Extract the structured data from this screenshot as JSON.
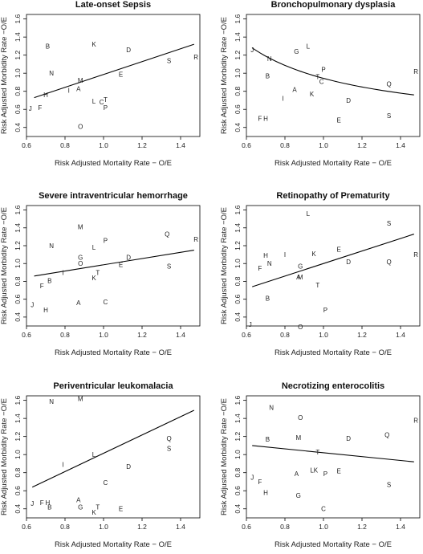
{
  "chart_data": [
    {
      "type": "scatter",
      "title": "Late-onset Sepsis",
      "xlabel": "Risk Adjusted Mortality Rate − O/E",
      "ylabel": "Risk Adjusted Morbidity Rate −O/E",
      "xlim": [
        0.6,
        1.5
      ],
      "ylim": [
        0.3,
        1.65
      ],
      "xticks": [
        "0.6",
        "0.8",
        "1.0",
        "1.2",
        "1.4"
      ],
      "yticks": [
        "0.4",
        "0.6",
        "0.8",
        "1.0",
        "1.2",
        "1.4",
        "1.6"
      ],
      "points": [
        {
          "label": "B",
          "x": 0.71,
          "y": 1.3
        },
        {
          "label": "K",
          "x": 0.95,
          "y": 1.32
        },
        {
          "label": "D",
          "x": 1.13,
          "y": 1.26
        },
        {
          "label": "S",
          "x": 1.34,
          "y": 1.14
        },
        {
          "label": "R",
          "x": 1.48,
          "y": 1.18
        },
        {
          "label": "N",
          "x": 0.73,
          "y": 1.0
        },
        {
          "label": "E",
          "x": 1.09,
          "y": 0.99
        },
        {
          "label": "M",
          "x": 0.88,
          "y": 0.92
        },
        {
          "label": "A",
          "x": 0.87,
          "y": 0.83
        },
        {
          "label": "I",
          "x": 0.82,
          "y": 0.81
        },
        {
          "label": "H",
          "x": 0.7,
          "y": 0.76
        },
        {
          "label": "T",
          "x": 1.01,
          "y": 0.71
        },
        {
          "label": "L",
          "x": 0.95,
          "y": 0.69
        },
        {
          "label": "C",
          "x": 0.99,
          "y": 0.68
        },
        {
          "label": "P",
          "x": 1.01,
          "y": 0.62
        },
        {
          "label": "F",
          "x": 0.67,
          "y": 0.62
        },
        {
          "label": "J",
          "x": 0.62,
          "y": 0.61
        },
        {
          "label": "O",
          "x": 0.88,
          "y": 0.41
        }
      ],
      "trend": {
        "shape": "linear",
        "from": [
          0.64,
          0.73
        ],
        "to": [
          1.47,
          1.32
        ]
      }
    },
    {
      "type": "scatter",
      "title": "Bronchopulmonary dysplasia",
      "xlabel": "Risk Adjusted Mortality Rate − O/E",
      "ylabel": "Risk Adjusted Morbidity Rate −O/E",
      "xlim": [
        0.6,
        1.5
      ],
      "ylim": [
        0.3,
        1.65
      ],
      "xticks": [
        "0.6",
        "0.8",
        "1.0",
        "1.2",
        "1.4"
      ],
      "yticks": [
        "0.4",
        "0.6",
        "0.8",
        "1.0",
        "1.2",
        "1.4",
        "1.6"
      ],
      "points": [
        {
          "label": "L",
          "x": 0.92,
          "y": 1.3
        },
        {
          "label": "J",
          "x": 0.63,
          "y": 1.26
        },
        {
          "label": "G",
          "x": 0.86,
          "y": 1.24
        },
        {
          "label": "N",
          "x": 0.72,
          "y": 1.16
        },
        {
          "label": "R",
          "x": 1.48,
          "y": 1.02
        },
        {
          "label": "P",
          "x": 1.0,
          "y": 1.04
        },
        {
          "label": "B",
          "x": 0.71,
          "y": 0.97
        },
        {
          "label": "T",
          "x": 0.97,
          "y": 0.96
        },
        {
          "label": "C",
          "x": 0.99,
          "y": 0.91
        },
        {
          "label": "Q",
          "x": 1.34,
          "y": 0.88
        },
        {
          "label": "A",
          "x": 0.85,
          "y": 0.82
        },
        {
          "label": "K",
          "x": 0.94,
          "y": 0.77
        },
        {
          "label": "I",
          "x": 0.79,
          "y": 0.72
        },
        {
          "label": "D",
          "x": 1.13,
          "y": 0.7
        },
        {
          "label": "F",
          "x": 0.67,
          "y": 0.5
        },
        {
          "label": "H",
          "x": 0.7,
          "y": 0.5
        },
        {
          "label": "E",
          "x": 1.08,
          "y": 0.48
        },
        {
          "label": "S",
          "x": 1.34,
          "y": 0.53
        }
      ],
      "trend": {
        "shape": "reciprocal",
        "from": [
          0.63,
          1.28
        ],
        "to": [
          1.47,
          0.76
        ]
      }
    },
    {
      "type": "scatter",
      "title": "Severe intraventricular hemorrhage",
      "xlabel": "Risk Adjusted Mortality Rate − O/E",
      "ylabel": "Risk Adjusted Morbidity Rate −O/E",
      "xlim": [
        0.6,
        1.5
      ],
      "ylim": [
        0.3,
        1.65
      ],
      "xticks": [
        "0.6",
        "0.8",
        "1.0",
        "1.2",
        "1.4"
      ],
      "yticks": [
        "0.4",
        "0.6",
        "0.8",
        "1.0",
        "1.2",
        "1.4",
        "1.6"
      ],
      "points": [
        {
          "label": "M",
          "x": 0.88,
          "y": 1.41
        },
        {
          "label": "Q",
          "x": 1.33,
          "y": 1.33
        },
        {
          "label": "R",
          "x": 1.48,
          "y": 1.27
        },
        {
          "label": "P",
          "x": 1.01,
          "y": 1.26
        },
        {
          "label": "N",
          "x": 0.73,
          "y": 1.2
        },
        {
          "label": "L",
          "x": 0.95,
          "y": 1.18
        },
        {
          "label": "G",
          "x": 0.88,
          "y": 1.07
        },
        {
          "label": "D",
          "x": 1.13,
          "y": 1.07
        },
        {
          "label": "O",
          "x": 0.88,
          "y": 1.0
        },
        {
          "label": "E",
          "x": 1.09,
          "y": 0.99
        },
        {
          "label": "S",
          "x": 1.34,
          "y": 0.97
        },
        {
          "label": "I",
          "x": 0.79,
          "y": 0.9
        },
        {
          "label": "T",
          "x": 0.97,
          "y": 0.9
        },
        {
          "label": "K",
          "x": 0.95,
          "y": 0.84
        },
        {
          "label": "B",
          "x": 0.72,
          "y": 0.81
        },
        {
          "label": "F",
          "x": 0.68,
          "y": 0.75
        },
        {
          "label": "A",
          "x": 0.87,
          "y": 0.56
        },
        {
          "label": "C",
          "x": 1.01,
          "y": 0.57
        },
        {
          "label": "J",
          "x": 0.63,
          "y": 0.54
        },
        {
          "label": "H",
          "x": 0.7,
          "y": 0.48
        }
      ],
      "trend": {
        "shape": "linear",
        "from": [
          0.64,
          0.86
        ],
        "to": [
          1.47,
          1.15
        ]
      }
    },
    {
      "type": "scatter",
      "title": "Retinopathy of Prematurity",
      "xlabel": "Risk Adjusted Mortality Rate − O/E",
      "ylabel": "Risk Adjusted Morbidity Rate −O/E",
      "xlim": [
        0.6,
        1.5
      ],
      "ylim": [
        0.3,
        1.65
      ],
      "xticks": [
        "0.6",
        "0.8",
        "1.0",
        "1.2",
        "1.4"
      ],
      "yticks": [
        "0.4",
        "0.6",
        "0.8",
        "1.0",
        "1.2",
        "1.4",
        "1.6"
      ],
      "points": [
        {
          "label": "L",
          "x": 0.92,
          "y": 1.56
        },
        {
          "label": "S",
          "x": 1.34,
          "y": 1.45
        },
        {
          "label": "E",
          "x": 1.08,
          "y": 1.16
        },
        {
          "label": "H",
          "x": 0.7,
          "y": 1.09
        },
        {
          "label": "I",
          "x": 0.8,
          "y": 1.1
        },
        {
          "label": "K",
          "x": 0.95,
          "y": 1.11
        },
        {
          "label": "R",
          "x": 1.48,
          "y": 1.1
        },
        {
          "label": "N",
          "x": 0.72,
          "y": 1.0
        },
        {
          "label": "D",
          "x": 1.13,
          "y": 1.02
        },
        {
          "label": "Q",
          "x": 1.34,
          "y": 1.02
        },
        {
          "label": "F",
          "x": 0.67,
          "y": 0.95
        },
        {
          "label": "G",
          "x": 0.88,
          "y": 0.97
        },
        {
          "label": "A",
          "x": 0.87,
          "y": 0.85
        },
        {
          "label": "M",
          "x": 0.88,
          "y": 0.85
        },
        {
          "label": "T",
          "x": 0.97,
          "y": 0.76
        },
        {
          "label": "B",
          "x": 0.71,
          "y": 0.61
        },
        {
          "label": "P",
          "x": 1.01,
          "y": 0.48
        },
        {
          "label": "J",
          "x": 0.62,
          "y": 0.32
        },
        {
          "label": "O",
          "x": 0.88,
          "y": 0.29
        }
      ],
      "trend": {
        "shape": "linear",
        "from": [
          0.63,
          0.74
        ],
        "to": [
          1.47,
          1.33
        ]
      }
    },
    {
      "type": "scatter",
      "title": "Periventricular leukomalacia",
      "xlabel": "Risk Adjusted Mortality Rate − O/E",
      "ylabel": "Risk Adjusted Morbidity Rate −O/E",
      "xlim": [
        0.6,
        1.5
      ],
      "ylim": [
        0.3,
        1.65
      ],
      "xticks": [
        "0.6",
        "0.8",
        "1.0",
        "1.2",
        "1.4"
      ],
      "yticks": [
        "0.4",
        "0.6",
        "0.8",
        "1.0",
        "1.2",
        "1.4",
        "1.6"
      ],
      "points": [
        {
          "label": "M",
          "x": 0.88,
          "y": 1.62
        },
        {
          "label": "N",
          "x": 0.73,
          "y": 1.59
        },
        {
          "label": "Q",
          "x": 1.34,
          "y": 1.18
        },
        {
          "label": "S",
          "x": 1.34,
          "y": 1.07
        },
        {
          "label": "L",
          "x": 0.95,
          "y": 1.0
        },
        {
          "label": "I",
          "x": 0.79,
          "y": 0.89
        },
        {
          "label": "D",
          "x": 1.13,
          "y": 0.87
        },
        {
          "label": "C",
          "x": 1.01,
          "y": 0.69
        },
        {
          "label": "A",
          "x": 0.87,
          "y": 0.5
        },
        {
          "label": "J",
          "x": 0.63,
          "y": 0.46
        },
        {
          "label": "F",
          "x": 0.68,
          "y": 0.47
        },
        {
          "label": "H",
          "x": 0.71,
          "y": 0.47
        },
        {
          "label": "B",
          "x": 0.72,
          "y": 0.42
        },
        {
          "label": "G",
          "x": 0.88,
          "y": 0.42
        },
        {
          "label": "T",
          "x": 0.97,
          "y": 0.42
        },
        {
          "label": "E",
          "x": 1.09,
          "y": 0.4
        },
        {
          "label": "K",
          "x": 0.95,
          "y": 0.36
        }
      ],
      "trend": {
        "shape": "linear",
        "from": [
          0.63,
          0.64
        ],
        "to": [
          1.47,
          1.49
        ]
      }
    },
    {
      "type": "scatter",
      "title": "Necrotizing enterocolitis",
      "xlabel": "Risk Adjusted Mortality Rate − O/E",
      "ylabel": "Risk Adjusted Morbidity Rate −O/E",
      "xlim": [
        0.6,
        1.5
      ],
      "ylim": [
        0.3,
        1.65
      ],
      "xticks": [
        "0.6",
        "0.8",
        "1.0",
        "1.2",
        "1.4"
      ],
      "yticks": [
        "0.4",
        "0.6",
        "0.8",
        "1.0",
        "1.2",
        "1.4",
        "1.6"
      ],
      "points": [
        {
          "label": "N",
          "x": 0.73,
          "y": 1.52
        },
        {
          "label": "O",
          "x": 0.88,
          "y": 1.41
        },
        {
          "label": "R",
          "x": 1.48,
          "y": 1.38
        },
        {
          "label": "Q",
          "x": 1.33,
          "y": 1.22
        },
        {
          "label": "B",
          "x": 0.71,
          "y": 1.17
        },
        {
          "label": "M",
          "x": 0.87,
          "y": 1.19
        },
        {
          "label": "D",
          "x": 1.13,
          "y": 1.18
        },
        {
          "label": "T",
          "x": 0.97,
          "y": 1.03
        },
        {
          "label": "L",
          "x": 0.94,
          "y": 0.83
        },
        {
          "label": "K",
          "x": 0.96,
          "y": 0.83
        },
        {
          "label": "E",
          "x": 1.08,
          "y": 0.82
        },
        {
          "label": "A",
          "x": 0.86,
          "y": 0.79
        },
        {
          "label": "P",
          "x": 1.01,
          "y": 0.79
        },
        {
          "label": "J",
          "x": 0.63,
          "y": 0.75
        },
        {
          "label": "F",
          "x": 0.67,
          "y": 0.7
        },
        {
          "label": "S",
          "x": 1.34,
          "y": 0.67
        },
        {
          "label": "H",
          "x": 0.7,
          "y": 0.58
        },
        {
          "label": "G",
          "x": 0.87,
          "y": 0.55
        },
        {
          "label": "C",
          "x": 1.0,
          "y": 0.4
        }
      ],
      "trend": {
        "shape": "linear",
        "from": [
          0.63,
          1.1
        ],
        "to": [
          1.47,
          0.92
        ]
      }
    }
  ]
}
